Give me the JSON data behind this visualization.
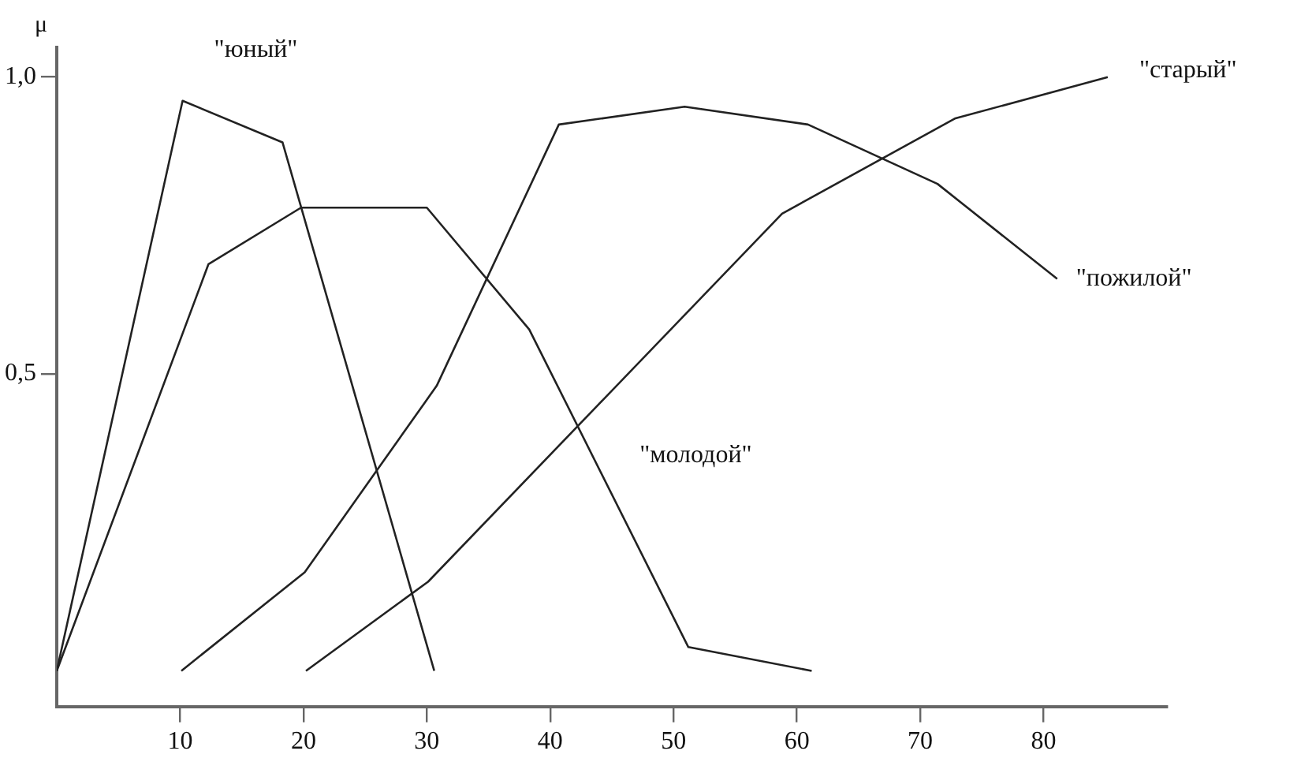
{
  "chart_data": {
    "type": "line",
    "ylabel": "μ",
    "xlim": [
      0,
      90
    ],
    "xticks": [
      10,
      20,
      30,
      40,
      50,
      60,
      70,
      80
    ],
    "ylim": [
      -0.06,
      1.05
    ],
    "yticks": [
      {
        "value": 0.5,
        "label": "0,5"
      },
      {
        "value": 1,
        "label": "1,0"
      }
    ],
    "grid": false,
    "legend": false,
    "marker": "none",
    "line_style": "solid",
    "series": [
      {
        "name": "\"юный\"",
        "color": "#222222",
        "x": [
          0,
          10.2,
          18.3,
          30.6
        ],
        "values": [
          0,
          0.96,
          0.89,
          0
        ]
      },
      {
        "name": "\"молодой\"",
        "color": "#222222",
        "x": [
          0,
          12.3,
          19.8,
          30,
          38.3,
          51.2,
          61.2
        ],
        "values": [
          0,
          0.685,
          0.78,
          0.78,
          0.575,
          0.04,
          0
        ]
      },
      {
        "name": "\"пожилой\"",
        "color": "#222222",
        "x": [
          10.1,
          20.1,
          30.8,
          40.7,
          50.9,
          60.9,
          71.4,
          81.1
        ],
        "values": [
          0,
          0.166,
          0.48,
          0.92,
          0.95,
          0.92,
          0.82,
          0.66
        ]
      },
      {
        "name": "\"старый\"",
        "color": "#222222",
        "x": [
          20.2,
          30.1,
          58.8,
          72.8,
          85.2
        ],
        "values": [
          0,
          0.15,
          0.77,
          0.93,
          1.0
        ]
      }
    ]
  }
}
